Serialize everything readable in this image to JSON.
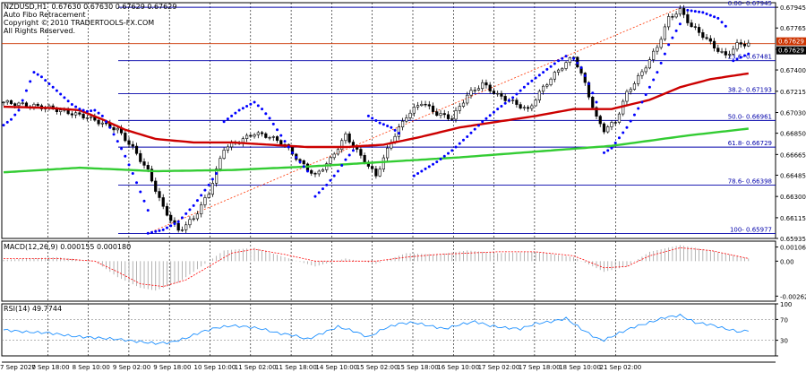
{
  "header": {
    "symbol_line": "NZDUSD,H1  0.67630 0.67630 0.67629 0.67629",
    "indicator_name": "Auto Fibo Retracement",
    "copyright": "Copyright © 2010 TRADERTOOLS-FX.COM",
    "rights": "All Rights Reserved."
  },
  "colors": {
    "background": "#ffffff",
    "grid": "#000000",
    "candles": "#000000",
    "sma_fast": "#cc0000",
    "sma_slow": "#33cc33",
    "sar": "#0000ff",
    "fib": "#0000aa",
    "trend": "#ff3300",
    "price_line": "#cc3300",
    "macd_hist": "#a0a0a0",
    "macd_signal": "#ff0000",
    "rsi": "#1e90ff"
  },
  "chart_data": [
    {
      "type": "candlestick",
      "panel": "main",
      "ylim": [
        0.65935,
        0.67985
      ],
      "y_ticks": [
        "0.67945",
        "0.67765",
        "0.67580",
        "0.67400",
        "0.67215",
        "0.67030",
        "0.66850",
        "0.66665",
        "0.66485",
        "0.66300",
        "0.66115",
        "0.65935"
      ],
      "x_ticks": [
        "7 Sep 2020",
        "7 Sep 18:00",
        "8 Sep 10:00",
        "9 Sep 02:00",
        "9 Sep 18:00",
        "10 Sep 10:00",
        "11 Sep 02:00",
        "11 Sep 18:00",
        "14 Sep 10:00",
        "15 Sep 02:00",
        "15 Sep 18:00",
        "16 Sep 10:00",
        "17 Sep 02:00",
        "17 Sep 18:00",
        "18 Sep 10:00",
        "21 Sep 02:00"
      ],
      "current_price": "0.67629",
      "price_badges": [
        "0.67629",
        "0.67629"
      ],
      "fib_levels": [
        {
          "label": "0.00- 0.67945",
          "value": 0.67945
        },
        {
          "label": "23.6- 0.67481",
          "value": 0.67481
        },
        {
          "label": "38.2- 0.67193",
          "value": 0.67193
        },
        {
          "label": "50.0- 0.66961",
          "value": 0.66961
        },
        {
          "label": "61.8- 0.66729",
          "value": 0.66729
        },
        {
          "label": "78.6- 0.66398",
          "value": 0.66398
        },
        {
          "label": "100- 0.65977",
          "value": 0.65977
        }
      ],
      "close_path": [
        [
          0,
          0.6712
        ],
        [
          12,
          0.6707
        ],
        [
          22,
          0.6699
        ],
        [
          30,
          0.6688
        ],
        [
          34,
          0.6672
        ],
        [
          38,
          0.6652
        ],
        [
          42,
          0.662
        ],
        [
          46,
          0.66
        ],
        [
          50,
          0.6611
        ],
        [
          54,
          0.6633
        ],
        [
          58,
          0.6672
        ],
        [
          62,
          0.6678
        ],
        [
          66,
          0.6685
        ],
        [
          70,
          0.6682
        ],
        [
          74,
          0.6675
        ],
        [
          78,
          0.666
        ],
        [
          82,
          0.6648
        ],
        [
          86,
          0.6662
        ],
        [
          90,
          0.6683
        ],
        [
          94,
          0.6665
        ],
        [
          98,
          0.6648
        ],
        [
          102,
          0.6678
        ],
        [
          106,
          0.67
        ],
        [
          110,
          0.6712
        ],
        [
          114,
          0.6702
        ],
        [
          118,
          0.6698
        ],
        [
          122,
          0.6718
        ],
        [
          126,
          0.6728
        ],
        [
          130,
          0.6718
        ],
        [
          134,
          0.6712
        ],
        [
          138,
          0.6705
        ],
        [
          142,
          0.6725
        ],
        [
          146,
          0.674
        ],
        [
          150,
          0.6752
        ],
        [
          153,
          0.6728
        ],
        [
          156,
          0.6698
        ],
        [
          158,
          0.6688
        ],
        [
          161,
          0.6695
        ],
        [
          164,
          0.672
        ],
        [
          168,
          0.6738
        ],
        [
          172,
          0.676
        ],
        [
          175,
          0.6785
        ],
        [
          178,
          0.6792
        ],
        [
          181,
          0.6778
        ],
        [
          184,
          0.677
        ],
        [
          187,
          0.676
        ],
        [
          190,
          0.6752
        ],
        [
          193,
          0.6762
        ],
        [
          196,
          0.6763
        ]
      ],
      "sma_fast_path": [
        [
          0,
          0.6708
        ],
        [
          12,
          0.6707
        ],
        [
          20,
          0.6705
        ],
        [
          26,
          0.6697
        ],
        [
          32,
          0.6688
        ],
        [
          40,
          0.668
        ],
        [
          50,
          0.6677
        ],
        [
          60,
          0.6677
        ],
        [
          70,
          0.6675
        ],
        [
          80,
          0.6673
        ],
        [
          90,
          0.6673
        ],
        [
          100,
          0.6675
        ],
        [
          110,
          0.6682
        ],
        [
          120,
          0.669
        ],
        [
          130,
          0.6695
        ],
        [
          140,
          0.67
        ],
        [
          150,
          0.6706
        ],
        [
          160,
          0.6706
        ],
        [
          170,
          0.6714
        ],
        [
          178,
          0.6725
        ],
        [
          186,
          0.6732
        ],
        [
          196,
          0.6737
        ]
      ],
      "sma_slow_path": [
        [
          0,
          0.6651
        ],
        [
          20,
          0.6655
        ],
        [
          40,
          0.6652
        ],
        [
          60,
          0.6653
        ],
        [
          80,
          0.6656
        ],
        [
          100,
          0.666
        ],
        [
          120,
          0.6664
        ],
        [
          140,
          0.6669
        ],
        [
          160,
          0.6674
        ],
        [
          180,
          0.6683
        ],
        [
          196,
          0.6689
        ]
      ],
      "sar_segments": [
        [
          [
            0,
            0.6692
          ],
          [
            2,
            0.6697
          ],
          [
            4,
            0.6705
          ],
          [
            6,
            0.6722
          ],
          [
            8,
            0.6738
          ],
          [
            10,
            0.6734
          ],
          [
            12,
            0.6728
          ],
          [
            14,
            0.6722
          ],
          [
            16,
            0.6716
          ],
          [
            18,
            0.671
          ],
          [
            20,
            0.6706
          ],
          [
            22,
            0.6704
          ],
          [
            24,
            0.6705
          ],
          [
            26,
            0.67
          ],
          [
            28,
            0.669
          ],
          [
            30,
            0.6678
          ],
          [
            32,
            0.6665
          ],
          [
            34,
            0.665
          ],
          [
            36,
            0.6634
          ],
          [
            38,
            0.6618
          ]
        ],
        [
          [
            38,
            0.5998
          ],
          [
            40,
            0.5999
          ]
        ],
        [
          [
            38,
            0.6598
          ],
          [
            42,
            0.6601
          ],
          [
            46,
            0.6608
          ],
          [
            50,
            0.6622
          ],
          [
            54,
            0.664
          ],
          [
            56,
            0.665
          ]
        ],
        [
          [
            58,
            0.6695
          ],
          [
            62,
            0.6705
          ],
          [
            66,
            0.6712
          ],
          [
            68,
            0.6706
          ],
          [
            70,
            0.6698
          ],
          [
            72,
            0.6688
          ],
          [
            74,
            0.6678
          ],
          [
            76,
            0.6668
          ],
          [
            78,
            0.666
          ],
          [
            80,
            0.6652
          ]
        ],
        [
          [
            82,
            0.663
          ],
          [
            85,
            0.664
          ],
          [
            88,
            0.6652
          ],
          [
            90,
            0.6662
          ],
          [
            92,
            0.667
          ]
        ],
        [
          [
            96,
            0.67
          ],
          [
            99,
            0.6694
          ],
          [
            102,
            0.669
          ],
          [
            104,
            0.6685
          ]
        ],
        [
          [
            108,
            0.6648
          ],
          [
            110,
            0.6652
          ],
          [
            114,
            0.666
          ],
          [
            118,
            0.667
          ],
          [
            122,
            0.6682
          ],
          [
            126,
            0.6695
          ],
          [
            130,
            0.6706
          ],
          [
            134,
            0.6716
          ],
          [
            138,
            0.6728
          ],
          [
            142,
            0.6738
          ],
          [
            146,
            0.6748
          ],
          [
            148,
            0.6752
          ]
        ],
        [
          [
            150,
            0.675
          ],
          [
            152,
            0.6742
          ],
          [
            154,
            0.6728
          ],
          [
            156,
            0.6712
          ]
        ],
        [
          [
            158,
            0.6668
          ],
          [
            160,
            0.6672
          ],
          [
            164,
            0.669
          ],
          [
            168,
            0.6712
          ],
          [
            172,
            0.6738
          ],
          [
            175,
            0.6762
          ],
          [
            178,
            0.678
          ]
        ],
        [
          [
            180,
            0.6792
          ],
          [
            184,
            0.679
          ],
          [
            188,
            0.6785
          ],
          [
            190,
            0.6778
          ]
        ],
        [
          [
            192,
            0.6748
          ],
          [
            194,
            0.6751
          ],
          [
            196,
            0.6754
          ]
        ]
      ],
      "trend_line": [
        [
          38,
          0.6598
        ],
        [
          178,
          0.6794
        ]
      ]
    },
    {
      "type": "bar",
      "panel": "macd",
      "label": "MACD(12,26,9) 0.000155 0.000180",
      "ylim": [
        -0.003,
        0.0015
      ],
      "y_ticks": [
        "0.00106",
        "0.00",
        "-0.00262"
      ],
      "hist_path": [
        [
          0,
          0.0001
        ],
        [
          14,
          0.0003
        ],
        [
          24,
          0.0
        ],
        [
          30,
          -0.0012
        ],
        [
          36,
          -0.002
        ],
        [
          40,
          -0.0022
        ],
        [
          46,
          -0.0016
        ],
        [
          52,
          -0.0004
        ],
        [
          58,
          0.0008
        ],
        [
          66,
          0.001
        ],
        [
          74,
          0.0003
        ],
        [
          82,
          -0.0004
        ],
        [
          90,
          0.0002
        ],
        [
          98,
          -0.0002
        ],
        [
          106,
          0.0006
        ],
        [
          114,
          0.0005
        ],
        [
          122,
          0.0008
        ],
        [
          130,
          0.0006
        ],
        [
          140,
          0.0007
        ],
        [
          150,
          0.0003
        ],
        [
          158,
          -0.0008
        ],
        [
          164,
          -0.0004
        ],
        [
          170,
          0.0007
        ],
        [
          178,
          0.0012
        ],
        [
          186,
          0.0008
        ],
        [
          196,
          0.0002
        ]
      ],
      "signal_path": [
        [
          0,
          0.0002
        ],
        [
          14,
          0.0002
        ],
        [
          24,
          0.0
        ],
        [
          30,
          -0.0008
        ],
        [
          36,
          -0.0017
        ],
        [
          42,
          -0.0019
        ],
        [
          48,
          -0.0014
        ],
        [
          54,
          -0.0004
        ],
        [
          60,
          0.0006
        ],
        [
          66,
          0.0009
        ],
        [
          74,
          0.0005
        ],
        [
          82,
          0.0
        ],
        [
          90,
          0.0
        ],
        [
          98,
          0.0
        ],
        [
          106,
          0.0003
        ],
        [
          114,
          0.0005
        ],
        [
          122,
          0.0006
        ],
        [
          130,
          0.0007
        ],
        [
          140,
          0.0007
        ],
        [
          150,
          0.0004
        ],
        [
          158,
          -0.0005
        ],
        [
          164,
          -0.0004
        ],
        [
          170,
          0.0004
        ],
        [
          178,
          0.001
        ],
        [
          186,
          0.0008
        ],
        [
          196,
          0.0002
        ]
      ]
    },
    {
      "type": "line",
      "panel": "rsi",
      "label": "RSI(14) 49.7744",
      "ylim": [
        0,
        100
      ],
      "y_ticks": [
        "100",
        "70",
        "30",
        "0"
      ],
      "values_path": [
        [
          0,
          50
        ],
        [
          6,
          46
        ],
        [
          12,
          44
        ],
        [
          18,
          38
        ],
        [
          24,
          35
        ],
        [
          30,
          32
        ],
        [
          36,
          27
        ],
        [
          40,
          24
        ],
        [
          44,
          26
        ],
        [
          48,
          34
        ],
        [
          52,
          46
        ],
        [
          56,
          54
        ],
        [
          60,
          58
        ],
        [
          64,
          56
        ],
        [
          68,
          52
        ],
        [
          72,
          44
        ],
        [
          76,
          40
        ],
        [
          80,
          32
        ],
        [
          84,
          44
        ],
        [
          88,
          56
        ],
        [
          92,
          48
        ],
        [
          96,
          36
        ],
        [
          100,
          52
        ],
        [
          104,
          62
        ],
        [
          108,
          64
        ],
        [
          112,
          58
        ],
        [
          116,
          52
        ],
        [
          120,
          60
        ],
        [
          124,
          66
        ],
        [
          128,
          58
        ],
        [
          132,
          54
        ],
        [
          136,
          52
        ],
        [
          140,
          62
        ],
        [
          144,
          66
        ],
        [
          148,
          72
        ],
        [
          152,
          52
        ],
        [
          156,
          34
        ],
        [
          158,
          30
        ],
        [
          162,
          44
        ],
        [
          166,
          56
        ],
        [
          170,
          64
        ],
        [
          174,
          74
        ],
        [
          178,
          78
        ],
        [
          182,
          64
        ],
        [
          186,
          60
        ],
        [
          190,
          52
        ],
        [
          194,
          46
        ],
        [
          196,
          50
        ]
      ]
    }
  ]
}
